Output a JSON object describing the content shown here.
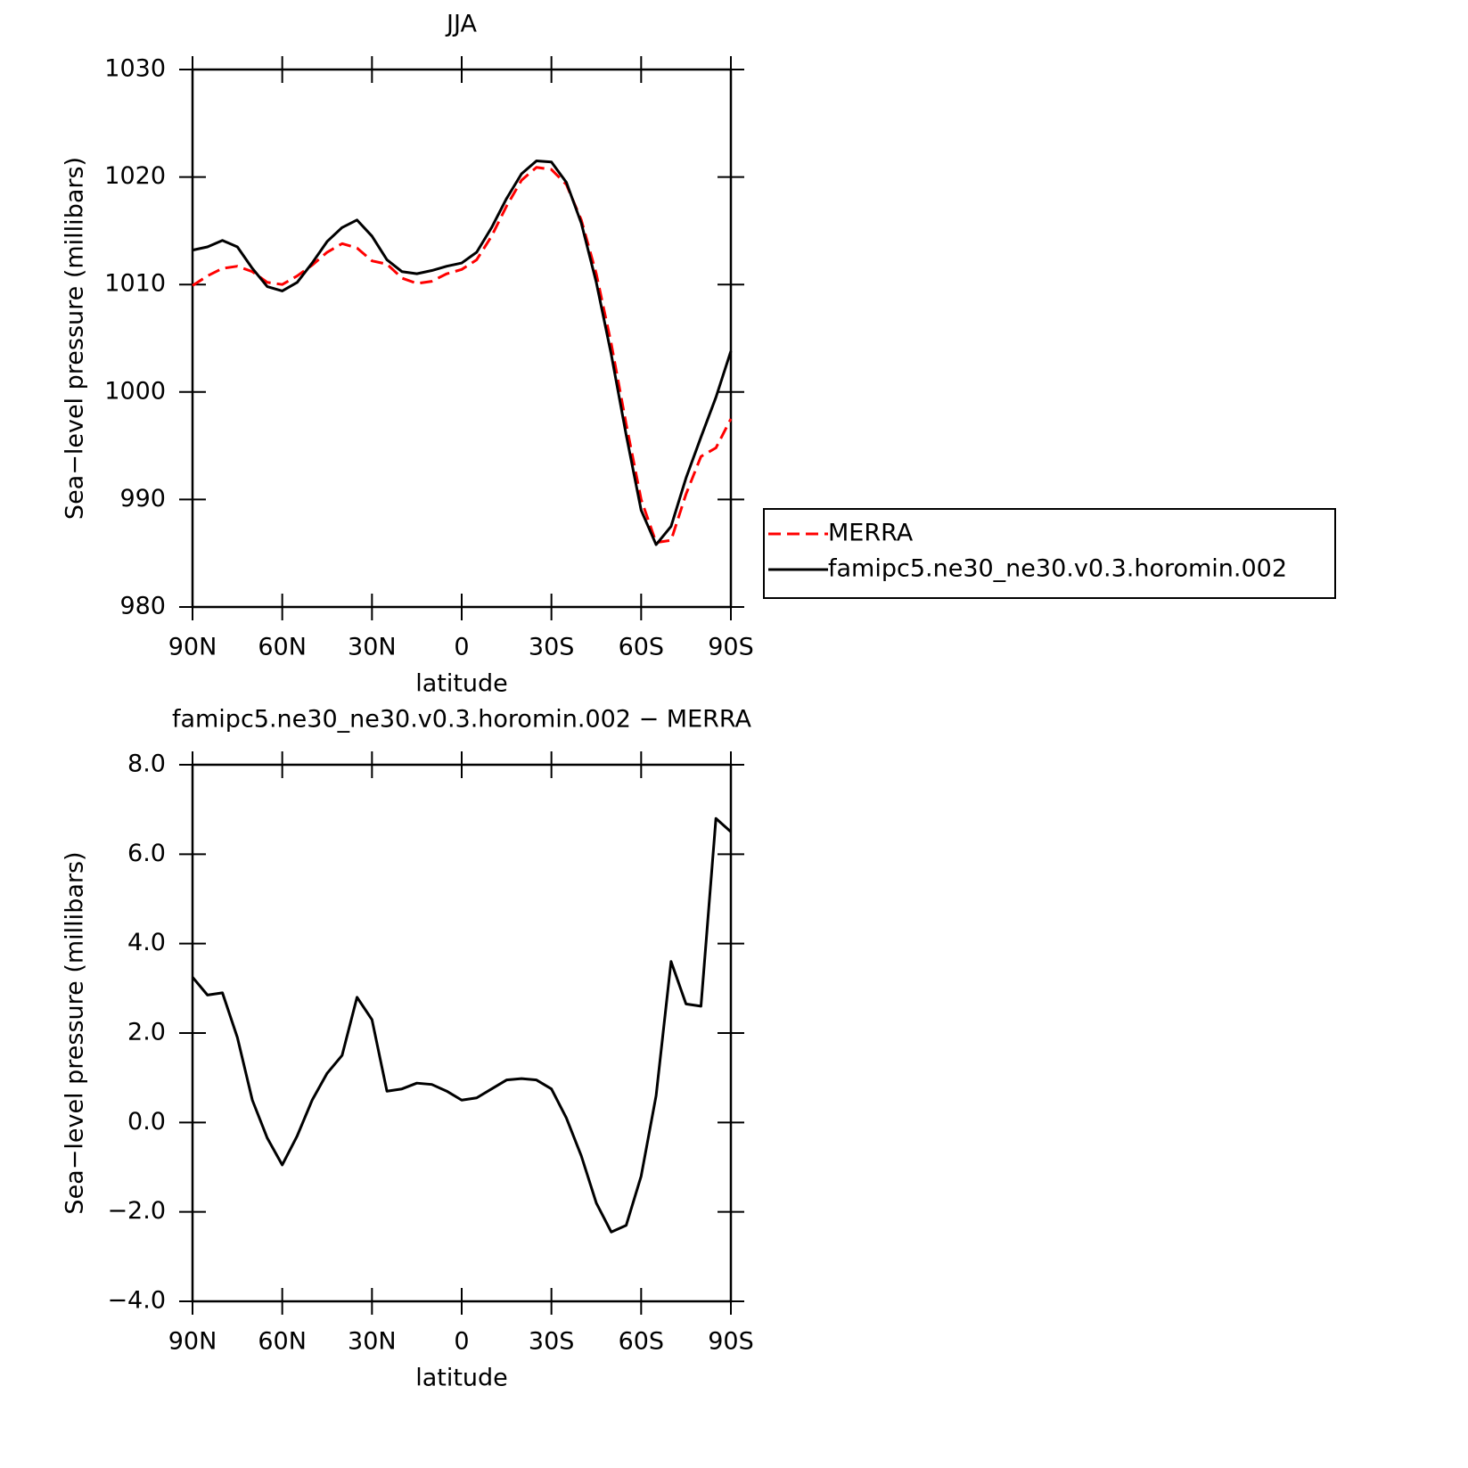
{
  "chart_data": [
    {
      "type": "line",
      "title": "JJA",
      "x_label": "latitude",
      "y_label": "Sea−level pressure (millibars)",
      "xlim": [
        90,
        -90
      ],
      "xticks": [
        {
          "value": 90,
          "label": "90N"
        },
        {
          "value": 60,
          "label": "60N"
        },
        {
          "value": 30,
          "label": "30N"
        },
        0,
        {
          "value": -30,
          "label": "30S"
        },
        {
          "value": -60,
          "label": "60S"
        },
        {
          "value": -90,
          "label": "90S"
        }
      ],
      "ylim": [
        980,
        1030
      ],
      "yticks": [
        980,
        990,
        1000,
        1010,
        1020,
        1030
      ],
      "legend": "right",
      "x": [
        90,
        85,
        80,
        75,
        70,
        65,
        60,
        55,
        50,
        45,
        40,
        35,
        30,
        25,
        20,
        15,
        10,
        5,
        0,
        -5,
        -10,
        -15,
        -20,
        -25,
        -30,
        -35,
        -40,
        -45,
        -50,
        -55,
        -60,
        -65,
        -70,
        -75,
        -80,
        -85,
        -90
      ],
      "series": [
        {
          "name": "MERRA",
          "color": "#ff0000",
          "style": "dashed",
          "values": [
            1009.9,
            1010.8,
            1011.5,
            1011.7,
            1011.2,
            1010.2,
            1010.0,
            1010.8,
            1011.8,
            1013.0,
            1013.8,
            1013.4,
            1012.2,
            1011.9,
            1010.6,
            1010.1,
            1010.3,
            1011.0,
            1011.4,
            1012.3,
            1014.5,
            1017.3,
            1019.7,
            1020.9,
            1020.7,
            1019.3,
            1016.0,
            1011.0,
            1004.5,
            997.0,
            990.0,
            986.0,
            986.2,
            990.5,
            994.0,
            994.8,
            997.5
          ]
        },
        {
          "name": "famipc5.ne30_ne30.v0.3.horomin.002",
          "color": "#000000",
          "style": "solid",
          "values": [
            1013.2,
            1013.5,
            1014.1,
            1013.5,
            1011.5,
            1009.8,
            1009.4,
            1010.2,
            1012.0,
            1014.0,
            1015.3,
            1016.0,
            1014.5,
            1012.3,
            1011.2,
            1011.0,
            1011.3,
            1011.7,
            1012.0,
            1013.0,
            1015.3,
            1018.0,
            1020.3,
            1021.5,
            1021.4,
            1019.5,
            1015.7,
            1010.2,
            1003.5,
            996.0,
            989.0,
            985.8,
            987.5,
            992.0,
            995.8,
            999.5,
            1003.8
          ]
        }
      ]
    },
    {
      "type": "line",
      "title": "famipc5.ne30_ne30.v0.3.horomin.002 − MERRA",
      "x_label": "latitude",
      "y_label": "Sea−level pressure (millibars)",
      "xlim": [
        90,
        -90
      ],
      "xticks": [
        {
          "value": 90,
          "label": "90N"
        },
        {
          "value": 60,
          "label": "60N"
        },
        {
          "value": 30,
          "label": "30N"
        },
        0,
        {
          "value": -30,
          "label": "30S"
        },
        {
          "value": -60,
          "label": "60S"
        },
        {
          "value": -90,
          "label": "90S"
        }
      ],
      "ylim": [
        -4,
        8
      ],
      "yticks": [
        {
          "value": -4,
          "label": "−4.0"
        },
        {
          "value": -2,
          "label": "−2.0"
        },
        {
          "value": 0,
          "label": "0.0"
        },
        {
          "value": 2,
          "label": "2.0"
        },
        {
          "value": 4,
          "label": "4.0"
        },
        {
          "value": 6,
          "label": "6.0"
        },
        {
          "value": 8,
          "label": "8.0"
        }
      ],
      "x": [
        90,
        85,
        80,
        75,
        70,
        65,
        60,
        55,
        50,
        45,
        40,
        35,
        30,
        25,
        20,
        15,
        10,
        5,
        0,
        -5,
        -10,
        -15,
        -20,
        -25,
        -30,
        -35,
        -40,
        -45,
        -50,
        -55,
        -60,
        -65,
        -70,
        -75,
        -80,
        -85,
        -90
      ],
      "series": [
        {
          "color": "#000000",
          "style": "solid",
          "values": [
            3.25,
            2.85,
            2.9,
            1.9,
            0.5,
            -0.35,
            -0.95,
            -0.3,
            0.5,
            1.1,
            1.5,
            2.8,
            2.3,
            0.7,
            0.75,
            0.88,
            0.85,
            0.7,
            0.5,
            0.55,
            0.75,
            0.95,
            0.98,
            0.95,
            0.75,
            0.1,
            -0.75,
            -1.8,
            -2.45,
            -2.3,
            -1.2,
            0.6,
            3.6,
            2.65,
            2.6,
            6.8,
            6.5
          ]
        }
      ]
    }
  ]
}
